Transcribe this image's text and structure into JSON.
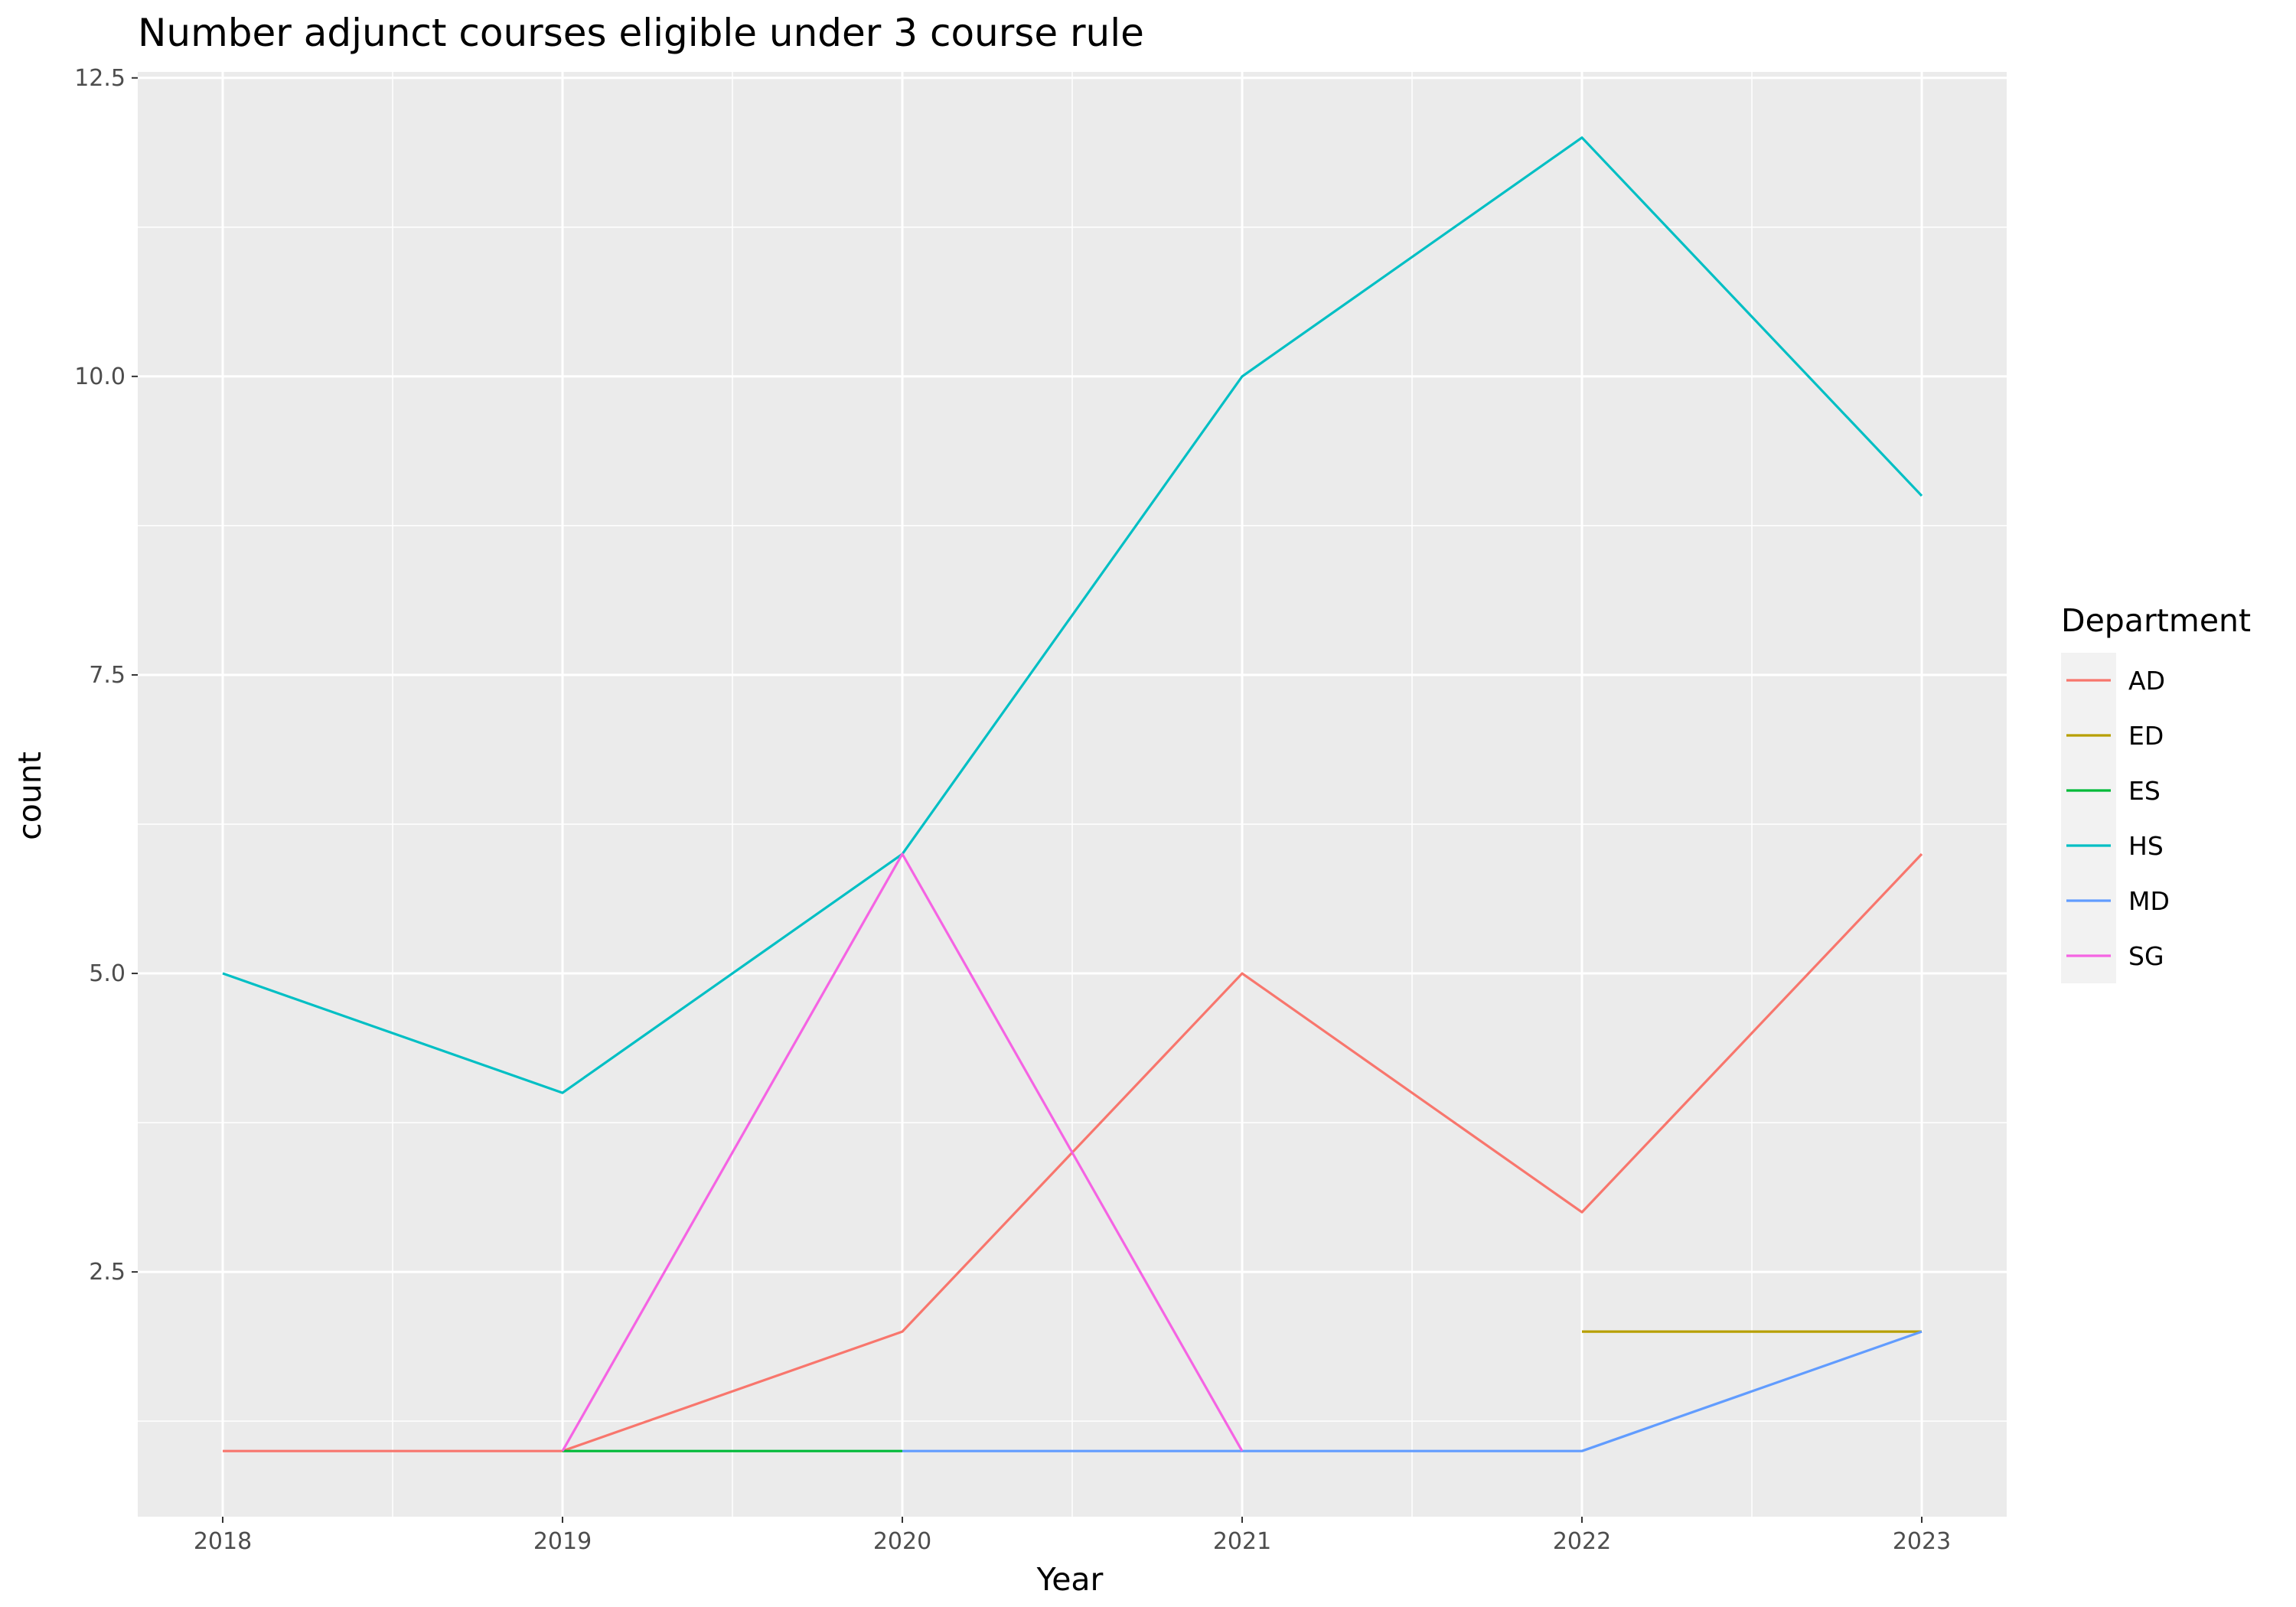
{
  "chart_data": {
    "type": "line",
    "title": "Number adjunct courses eligible under 3 course rule",
    "xlabel": "Year",
    "ylabel": "count",
    "x_ticks": [
      "2018",
      "2019",
      "2020",
      "2021",
      "2022",
      "2023"
    ],
    "y_ticks": [
      "2.5",
      "5.0",
      "7.5",
      "10.0",
      "12.5"
    ],
    "x_range": [
      2017.75,
      2023.25
    ],
    "y_range": [
      0.45,
      12.55
    ],
    "grid": true,
    "legend": {
      "title": "Department",
      "placement": "right"
    },
    "series": [
      {
        "name": "AD",
        "color": "#F8766D",
        "points": [
          [
            2018,
            1
          ],
          [
            2019,
            1
          ],
          [
            2020,
            2
          ],
          [
            2021,
            5
          ],
          [
            2022,
            3
          ],
          [
            2023,
            6
          ]
        ]
      },
      {
        "name": "ED",
        "color": "#B79F00",
        "points": [
          [
            2022,
            2
          ],
          [
            2023,
            2
          ]
        ]
      },
      {
        "name": "ES",
        "color": "#00BA38",
        "points": [
          [
            2019,
            1
          ],
          [
            2020,
            1
          ]
        ]
      },
      {
        "name": "HS",
        "color": "#00BFC4",
        "points": [
          [
            2018,
            5
          ],
          [
            2019,
            4
          ],
          [
            2020,
            6
          ],
          [
            2021,
            10
          ],
          [
            2022,
            12
          ],
          [
            2023,
            9
          ]
        ]
      },
      {
        "name": "MD",
        "color": "#619CFF",
        "points": [
          [
            2020,
            1
          ],
          [
            2021,
            1
          ],
          [
            2022,
            1
          ],
          [
            2023,
            2
          ]
        ]
      },
      {
        "name": "SG",
        "color": "#F564E3",
        "points": [
          [
            2019,
            1
          ],
          [
            2020,
            6
          ],
          [
            2021,
            1
          ]
        ]
      }
    ],
    "colors": {
      "panel": "#EBEBEB",
      "grid": "#FFFFFF",
      "legend_key": "#F2F2F2"
    }
  }
}
